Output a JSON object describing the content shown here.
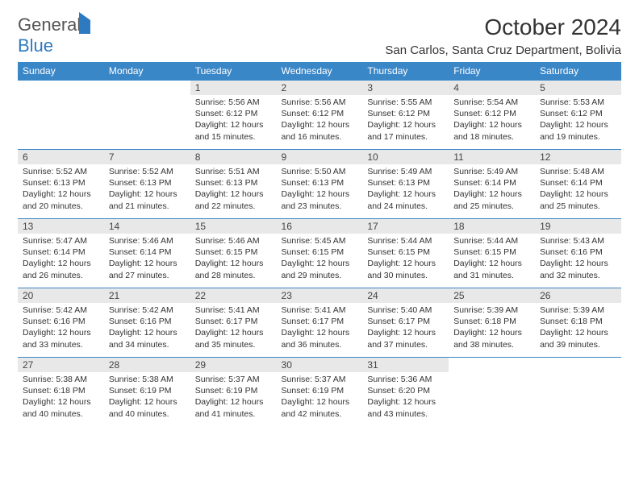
{
  "logo": {
    "word1": "General",
    "word2": "Blue"
  },
  "title": "October 2024",
  "location": "San Carlos, Santa Cruz Department, Bolivia",
  "colors": {
    "header_bg": "#3a87c8",
    "header_text": "#ffffff",
    "dayband_bg": "#e8e8e8",
    "text": "#333333",
    "logo_gray": "#555555",
    "logo_blue": "#2d7ac0"
  },
  "day_labels": [
    "Sunday",
    "Monday",
    "Tuesday",
    "Wednesday",
    "Thursday",
    "Friday",
    "Saturday"
  ],
  "weeks": [
    [
      null,
      null,
      {
        "n": "1",
        "sr": "Sunrise: 5:56 AM",
        "ss": "Sunset: 6:12 PM",
        "dl": "Daylight: 12 hours and 15 minutes."
      },
      {
        "n": "2",
        "sr": "Sunrise: 5:56 AM",
        "ss": "Sunset: 6:12 PM",
        "dl": "Daylight: 12 hours and 16 minutes."
      },
      {
        "n": "3",
        "sr": "Sunrise: 5:55 AM",
        "ss": "Sunset: 6:12 PM",
        "dl": "Daylight: 12 hours and 17 minutes."
      },
      {
        "n": "4",
        "sr": "Sunrise: 5:54 AM",
        "ss": "Sunset: 6:12 PM",
        "dl": "Daylight: 12 hours and 18 minutes."
      },
      {
        "n": "5",
        "sr": "Sunrise: 5:53 AM",
        "ss": "Sunset: 6:12 PM",
        "dl": "Daylight: 12 hours and 19 minutes."
      }
    ],
    [
      {
        "n": "6",
        "sr": "Sunrise: 5:52 AM",
        "ss": "Sunset: 6:13 PM",
        "dl": "Daylight: 12 hours and 20 minutes."
      },
      {
        "n": "7",
        "sr": "Sunrise: 5:52 AM",
        "ss": "Sunset: 6:13 PM",
        "dl": "Daylight: 12 hours and 21 minutes."
      },
      {
        "n": "8",
        "sr": "Sunrise: 5:51 AM",
        "ss": "Sunset: 6:13 PM",
        "dl": "Daylight: 12 hours and 22 minutes."
      },
      {
        "n": "9",
        "sr": "Sunrise: 5:50 AM",
        "ss": "Sunset: 6:13 PM",
        "dl": "Daylight: 12 hours and 23 minutes."
      },
      {
        "n": "10",
        "sr": "Sunrise: 5:49 AM",
        "ss": "Sunset: 6:13 PM",
        "dl": "Daylight: 12 hours and 24 minutes."
      },
      {
        "n": "11",
        "sr": "Sunrise: 5:49 AM",
        "ss": "Sunset: 6:14 PM",
        "dl": "Daylight: 12 hours and 25 minutes."
      },
      {
        "n": "12",
        "sr": "Sunrise: 5:48 AM",
        "ss": "Sunset: 6:14 PM",
        "dl": "Daylight: 12 hours and 25 minutes."
      }
    ],
    [
      {
        "n": "13",
        "sr": "Sunrise: 5:47 AM",
        "ss": "Sunset: 6:14 PM",
        "dl": "Daylight: 12 hours and 26 minutes."
      },
      {
        "n": "14",
        "sr": "Sunrise: 5:46 AM",
        "ss": "Sunset: 6:14 PM",
        "dl": "Daylight: 12 hours and 27 minutes."
      },
      {
        "n": "15",
        "sr": "Sunrise: 5:46 AM",
        "ss": "Sunset: 6:15 PM",
        "dl": "Daylight: 12 hours and 28 minutes."
      },
      {
        "n": "16",
        "sr": "Sunrise: 5:45 AM",
        "ss": "Sunset: 6:15 PM",
        "dl": "Daylight: 12 hours and 29 minutes."
      },
      {
        "n": "17",
        "sr": "Sunrise: 5:44 AM",
        "ss": "Sunset: 6:15 PM",
        "dl": "Daylight: 12 hours and 30 minutes."
      },
      {
        "n": "18",
        "sr": "Sunrise: 5:44 AM",
        "ss": "Sunset: 6:15 PM",
        "dl": "Daylight: 12 hours and 31 minutes."
      },
      {
        "n": "19",
        "sr": "Sunrise: 5:43 AM",
        "ss": "Sunset: 6:16 PM",
        "dl": "Daylight: 12 hours and 32 minutes."
      }
    ],
    [
      {
        "n": "20",
        "sr": "Sunrise: 5:42 AM",
        "ss": "Sunset: 6:16 PM",
        "dl": "Daylight: 12 hours and 33 minutes."
      },
      {
        "n": "21",
        "sr": "Sunrise: 5:42 AM",
        "ss": "Sunset: 6:16 PM",
        "dl": "Daylight: 12 hours and 34 minutes."
      },
      {
        "n": "22",
        "sr": "Sunrise: 5:41 AM",
        "ss": "Sunset: 6:17 PM",
        "dl": "Daylight: 12 hours and 35 minutes."
      },
      {
        "n": "23",
        "sr": "Sunrise: 5:41 AM",
        "ss": "Sunset: 6:17 PM",
        "dl": "Daylight: 12 hours and 36 minutes."
      },
      {
        "n": "24",
        "sr": "Sunrise: 5:40 AM",
        "ss": "Sunset: 6:17 PM",
        "dl": "Daylight: 12 hours and 37 minutes."
      },
      {
        "n": "25",
        "sr": "Sunrise: 5:39 AM",
        "ss": "Sunset: 6:18 PM",
        "dl": "Daylight: 12 hours and 38 minutes."
      },
      {
        "n": "26",
        "sr": "Sunrise: 5:39 AM",
        "ss": "Sunset: 6:18 PM",
        "dl": "Daylight: 12 hours and 39 minutes."
      }
    ],
    [
      {
        "n": "27",
        "sr": "Sunrise: 5:38 AM",
        "ss": "Sunset: 6:18 PM",
        "dl": "Daylight: 12 hours and 40 minutes."
      },
      {
        "n": "28",
        "sr": "Sunrise: 5:38 AM",
        "ss": "Sunset: 6:19 PM",
        "dl": "Daylight: 12 hours and 40 minutes."
      },
      {
        "n": "29",
        "sr": "Sunrise: 5:37 AM",
        "ss": "Sunset: 6:19 PM",
        "dl": "Daylight: 12 hours and 41 minutes."
      },
      {
        "n": "30",
        "sr": "Sunrise: 5:37 AM",
        "ss": "Sunset: 6:19 PM",
        "dl": "Daylight: 12 hours and 42 minutes."
      },
      {
        "n": "31",
        "sr": "Sunrise: 5:36 AM",
        "ss": "Sunset: 6:20 PM",
        "dl": "Daylight: 12 hours and 43 minutes."
      },
      null,
      null
    ]
  ]
}
